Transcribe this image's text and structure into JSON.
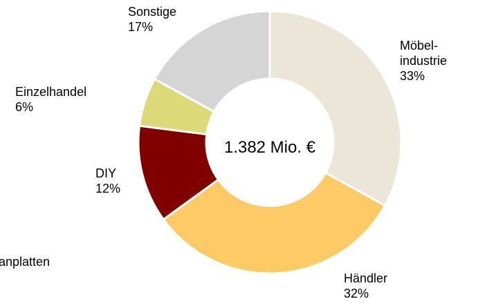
{
  "chart_data": {
    "type": "donut",
    "center_label": "1.382 Mio. €",
    "side_note": "anplatten",
    "categories": [
      "Möbel-\nindustrie",
      "Händler",
      "DIY",
      "Einzelhandel",
      "Sonstige"
    ],
    "values": [
      33,
      32,
      12,
      6,
      17
    ],
    "value_labels": [
      "33%",
      "32%",
      "12%",
      "6%",
      "17%"
    ],
    "colors": [
      "#ebe6d8",
      "#fdca65",
      "#800000",
      "#dcd978",
      "#d5d5d5"
    ]
  }
}
